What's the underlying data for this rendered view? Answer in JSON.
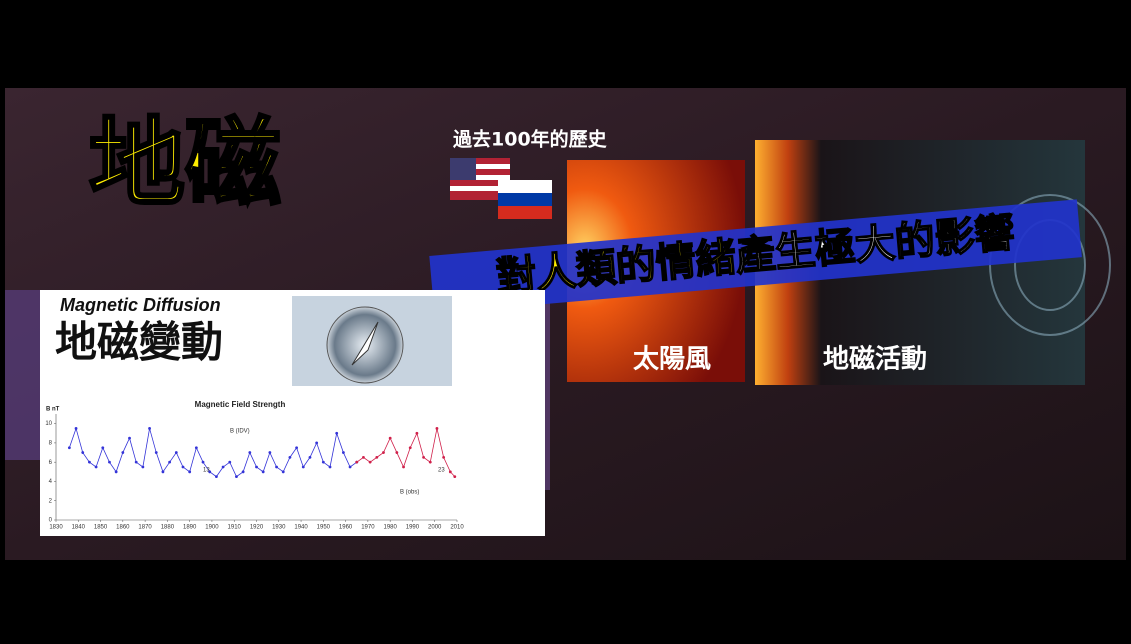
{
  "header": {
    "title": "地磁"
  },
  "history_label": "過去100年的歷史",
  "banner": {
    "highlight": "對人類的情緒",
    "rest": "產生極大的影響"
  },
  "captions": [
    "太陽風",
    "地磁活動"
  ],
  "panel": {
    "subtitle": "Magnetic Diffusion",
    "title": "地磁變動"
  },
  "chart_data": {
    "type": "line",
    "title": "Magnetic Field Strength",
    "y_label": "B nT",
    "xlim": [
      1830,
      2010
    ],
    "ylim": [
      0,
      11
    ],
    "xticks": [
      1830,
      1840,
      1850,
      1860,
      1870,
      1880,
      1890,
      1900,
      1910,
      1920,
      1930,
      1940,
      1950,
      1960,
      1970,
      1980,
      1990,
      2000,
      2010
    ],
    "yticks": [
      0,
      2,
      4,
      6,
      8,
      10
    ],
    "annotations": [
      "13",
      "23"
    ],
    "series": [
      {
        "name": "B (IDV)",
        "color": "#3434d8",
        "x": [
          1836,
          1839,
          1842,
          1845,
          1848,
          1851,
          1854,
          1857,
          1860,
          1863,
          1866,
          1869,
          1872,
          1875,
          1878,
          1881,
          1884,
          1887,
          1890,
          1893,
          1896,
          1899,
          1902,
          1905,
          1908,
          1911,
          1914,
          1917,
          1920,
          1923,
          1926,
          1929,
          1932,
          1935,
          1938,
          1941,
          1944,
          1947,
          1950,
          1953,
          1956,
          1959,
          1962,
          1965
        ],
        "values": [
          7.5,
          9.5,
          7,
          6,
          5.5,
          7.5,
          6,
          5,
          7,
          8.5,
          6,
          5.5,
          9.5,
          7,
          5,
          6,
          7,
          5.5,
          5,
          7.5,
          6,
          5,
          4.5,
          5.5,
          6,
          4.5,
          5,
          7,
          5.5,
          5,
          7,
          5.5,
          5,
          6.5,
          7.5,
          5.5,
          6.5,
          8,
          6,
          5.5,
          9,
          7,
          5.5,
          6
        ]
      },
      {
        "name": "B (obs)",
        "color": "#d0204a",
        "x": [
          1965,
          1968,
          1971,
          1974,
          1977,
          1980,
          1983,
          1986,
          1989,
          1992,
          1995,
          1998,
          2001,
          2004,
          2007,
          2009
        ],
        "values": [
          6,
          6.5,
          6,
          6.5,
          7,
          8.5,
          7,
          5.5,
          7.5,
          9,
          6.5,
          6,
          9.5,
          6.5,
          5,
          4.5
        ]
      }
    ]
  }
}
